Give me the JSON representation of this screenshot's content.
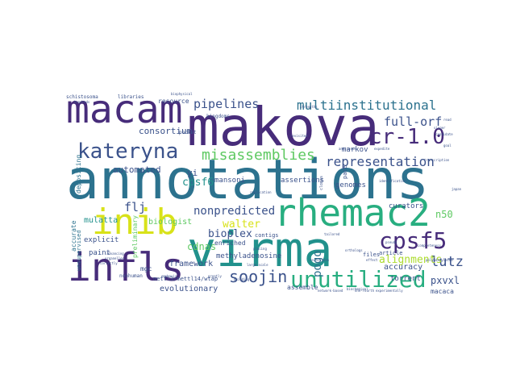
{
  "colors": {
    "background": "#ffffff",
    "dark_purple": "#472c7a",
    "indigo": "#3b528b",
    "blue": "#2c728e",
    "teal": "#21918c",
    "green_teal": "#28ae80",
    "green": "#5ec962",
    "yellow_green": "#addc30",
    "yellow": "#d8e219"
  },
  "words": [
    {
      "text": "annotations",
      "weight": 1.0,
      "color": "#2c728e"
    },
    {
      "text": "makova",
      "weight": 0.95,
      "color": "#472c7a"
    },
    {
      "text": "virma",
      "weight": 0.92,
      "color": "#21918c"
    },
    {
      "text": "macam",
      "weight": 0.8,
      "color": "#472c7a"
    },
    {
      "text": "infls",
      "weight": 0.78,
      "color": "#472c7a"
    },
    {
      "text": "rhemac2",
      "weight": 0.76,
      "color": "#28ae80"
    },
    {
      "text": "inib",
      "weight": 0.72,
      "color": "#d8e219"
    },
    {
      "text": "unutilized",
      "weight": 0.55,
      "color": "#28ae80"
    },
    {
      "text": "cpsf5",
      "weight": 0.52,
      "color": "#472c7a"
    },
    {
      "text": "kateryna",
      "weight": 0.48,
      "color": "#3b528b"
    },
    {
      "text": "cr-1.0",
      "weight": 0.45,
      "color": "#472c7a"
    },
    {
      "text": "misassemblies",
      "weight": 0.38,
      "color": "#5ec962"
    },
    {
      "text": "multiinstitutional",
      "weight": 0.34,
      "color": "#2c728e"
    },
    {
      "text": "soojin",
      "weight": 0.34,
      "color": "#3b528b"
    },
    {
      "text": "representation",
      "weight": 0.3,
      "color": "#3b528b"
    },
    {
      "text": "pipelines",
      "weight": 0.27,
      "color": "#3b528b"
    },
    {
      "text": "full-orf",
      "weight": 0.27,
      "color": "#3b528b"
    },
    {
      "text": "nonpredicted",
      "weight": 0.25,
      "color": "#3b528b"
    },
    {
      "text": "lutz",
      "weight": 0.26,
      "color": "#3b528b"
    },
    {
      "text": "alignments",
      "weight": 0.22,
      "color": "#addc30"
    },
    {
      "text": "pogo",
      "weight": 0.23,
      "color": "#2c728e"
    },
    {
      "text": "walter",
      "weight": 0.22,
      "color": "#d8e219"
    },
    {
      "text": "bioplex",
      "weight": 0.22,
      "color": "#3b528b"
    },
    {
      "text": "flj",
      "weight": 0.22,
      "color": "#3b528b"
    },
    {
      "text": "cpsf6",
      "weight": 0.2,
      "color": "#21918c"
    },
    {
      "text": "cdnas",
      "weight": 0.19,
      "color": "#5ec962"
    },
    {
      "text": "automated",
      "weight": 0.17,
      "color": "#3b528b"
    },
    {
      "text": "consortium",
      "weight": 0.16,
      "color": "#3b528b"
    },
    {
      "text": "pxvxl",
      "weight": 0.18,
      "color": "#3b528b"
    },
    {
      "text": "n50",
      "weight": 0.16,
      "color": "#5ec962"
    },
    {
      "text": "evolutionary",
      "weight": 0.13,
      "color": "#3b528b"
    },
    {
      "text": "biologist",
      "weight": 0.13,
      "color": "#5ec962"
    },
    {
      "text": "mulatta",
      "weight": 0.12,
      "color": "#21918c"
    },
    {
      "text": "accuracy",
      "weight": 0.12,
      "color": "#3b528b"
    },
    {
      "text": "framework",
      "weight": 0.12,
      "color": "#3b528b"
    },
    {
      "text": "markov",
      "weight": 0.11,
      "color": "#3b528b"
    },
    {
      "text": "genomes",
      "weight": 0.11,
      "color": "#3b528b"
    },
    {
      "text": "resource",
      "weight": 0.11,
      "color": "#3b528b"
    },
    {
      "text": "yi",
      "weight": 0.13,
      "color": "#3b528b"
    },
    {
      "text": "assertions",
      "weight": 0.1,
      "color": "#3b528b"
    },
    {
      "text": "mansoni",
      "weight": 0.1,
      "color": "#3b528b"
    },
    {
      "text": "explicit",
      "weight": 0.1,
      "color": "#3b528b"
    },
    {
      "text": "paint",
      "weight": 0.1,
      "color": "#3b528b"
    },
    {
      "text": "depositing",
      "weight": 0.1,
      "color": "#2c728e"
    },
    {
      "text": "accurate",
      "weight": 0.1,
      "color": "#2c728e"
    },
    {
      "text": "preliminary",
      "weight": 0.1,
      "color": "#5ec962"
    },
    {
      "text": "mgc",
      "weight": 0.1,
      "color": "#3b528b"
    },
    {
      "text": "torrent",
      "weight": 0.1,
      "color": "#3b528b"
    },
    {
      "text": "curators",
      "weight": 0.1,
      "color": "#3b528b"
    },
    {
      "text": "assemble",
      "weight": 0.09,
      "color": "#3b528b"
    },
    {
      "text": "macaca",
      "weight": 0.09,
      "color": "#3b528b"
    },
    {
      "text": "methyladenosine",
      "weight": 0.1,
      "color": "#3b528b"
    },
    {
      "text": "mettl3/mettl14/wtap",
      "weight": 0.09,
      "color": "#3b528b"
    },
    {
      "text": "unsupervised",
      "weight": 0.09,
      "color": "#2c728e"
    },
    {
      "text": "enriched",
      "weight": 0.09,
      "color": "#3b528b"
    },
    {
      "text": "contigs",
      "weight": 0.08,
      "color": "#3b528b"
    },
    {
      "text": "files",
      "weight": 0.08,
      "color": "#3b528b"
    },
    {
      "text": "article",
      "weight": 0.08,
      "color": "#3b528b"
    },
    {
      "text": "pace",
      "weight": 0.08,
      "color": "#3b528b"
    },
    {
      "text": "kingdoms",
      "weight": 0.07,
      "color": "#3b528b"
    },
    {
      "text": "schistosoma",
      "weight": 0.07,
      "color": "#3b528b"
    },
    {
      "text": "libraries",
      "weight": 0.07,
      "color": "#3b528b"
    },
    {
      "text": "pocket",
      "weight": 0.06,
      "color": "#3b528b"
    },
    {
      "text": "nonhuman",
      "weight": 0.06,
      "color": "#3b528b"
    },
    {
      "text": "placing",
      "weight": 0.05,
      "color": "#3b528b"
    },
    {
      "text": "polyadenylated",
      "weight": 0.05,
      "color": "#3b528b"
    },
    {
      "text": "network-based",
      "weight": 0.05,
      "color": "#3b528b"
    },
    {
      "text": "experimentally",
      "weight": 0.05,
      "color": "#3b528b"
    },
    {
      "text": "completeness",
      "weight": 0.05,
      "color": "#3b528b"
    },
    {
      "text": "biochemical",
      "weight": 0.05,
      "color": "#3b528b"
    },
    {
      "text": "identification",
      "weight": 0.05,
      "color": "#3b528b"
    },
    {
      "text": "organelles",
      "weight": 0.05,
      "color": "#3b528b"
    },
    {
      "text": "emphasis",
      "weight": 0.05,
      "color": "#3b528b"
    },
    {
      "text": "transcription",
      "weight": 0.05,
      "color": "#3b528b"
    },
    {
      "text": "orthologs",
      "weight": 0.05,
      "color": "#3b528b"
    },
    {
      "text": "expedite",
      "weight": 0.05,
      "color": "#3b528b"
    },
    {
      "text": "strengths",
      "weight": 0.05,
      "color": "#3b528b"
    },
    {
      "text": "greatly",
      "weight": 0.05,
      "color": "#3b528b"
    },
    {
      "text": "goal",
      "weight": 0.05,
      "color": "#3b528b"
    },
    {
      "text": "singer",
      "weight": 0.05,
      "color": "#3b528b"
    },
    {
      "text": "pseudo",
      "weight": 0.05,
      "color": "#3b528b"
    },
    {
      "text": "effect",
      "weight": 0.05,
      "color": "#3b528b"
    },
    {
      "text": "candidate",
      "weight": 0.05,
      "color": "#3b528b"
    },
    {
      "text": "revisited",
      "weight": 0.05,
      "color": "#3b528b"
    },
    {
      "text": "advancing",
      "weight": 0.05,
      "color": "#3b528b"
    },
    {
      "text": "correctly",
      "weight": 0.05,
      "color": "#3b528b"
    },
    {
      "text": "building",
      "weight": 0.05,
      "color": "#3b528b"
    },
    {
      "text": "biophysical",
      "weight": 0.05,
      "color": "#3b528b"
    },
    {
      "text": "read",
      "weight": 0.05,
      "color": "#3b528b"
    },
    {
      "text": "japan",
      "weight": 0.05,
      "color": "#3b528b"
    },
    {
      "text": "clones",
      "weight": 0.05,
      "color": "#3b528b"
    },
    {
      "text": "antisense",
      "weight": 0.05,
      "color": "#3b528b"
    },
    {
      "text": "tailored",
      "weight": 0.05,
      "color": "#3b528b"
    },
    {
      "text": "replication",
      "weight": 0.05,
      "color": "#3b528b"
    },
    {
      "text": "one-fourth",
      "weight": 0.05,
      "color": "#3b528b"
    },
    {
      "text": "large-scale",
      "weight": 0.05,
      "color": "#3b528b"
    },
    {
      "text": "resolution",
      "weight": 0.05,
      "color": "#3b528b"
    },
    {
      "text": "hundreds",
      "weight": 0.05,
      "color": "#3b528b"
    }
  ]
}
